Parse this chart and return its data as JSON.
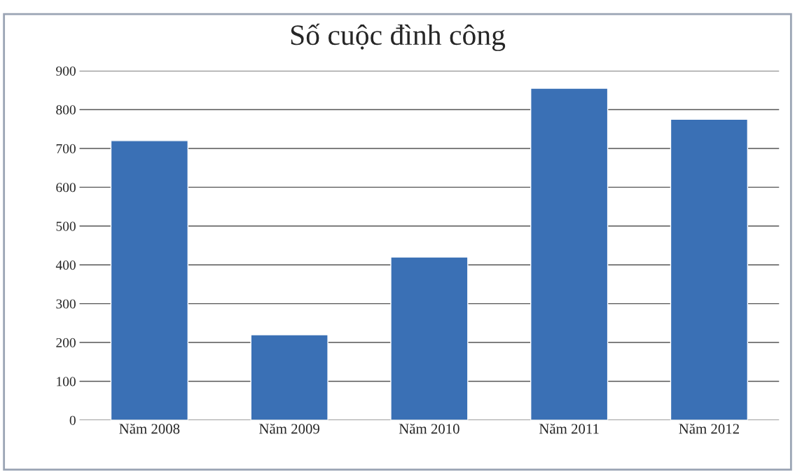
{
  "chart_data": {
    "type": "bar",
    "title": "Số cuộc đình công",
    "categories": [
      "Năm 2008",
      "Năm 2009",
      "Năm 2010",
      "Năm 2011",
      "Năm 2012"
    ],
    "values": [
      720,
      220,
      420,
      855,
      775
    ],
    "color": "#3a70b5",
    "ylim": [
      0,
      900
    ],
    "yticks": [
      0,
      100,
      200,
      300,
      400,
      500,
      600,
      700,
      800,
      900
    ],
    "grid": "y",
    "legend": false
  }
}
